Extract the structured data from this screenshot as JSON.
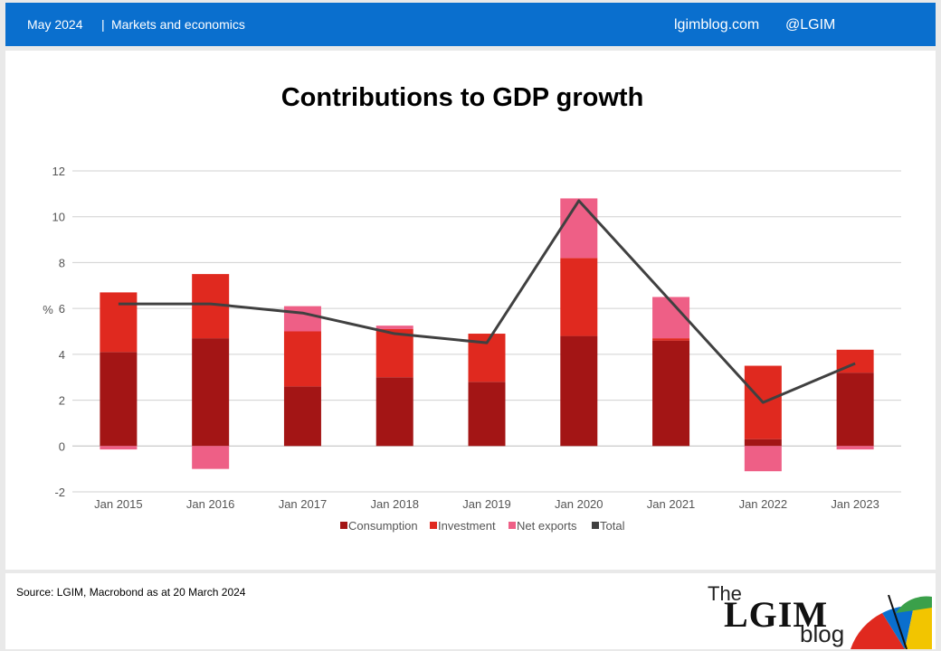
{
  "header": {
    "date": "May 2024",
    "separator": "|",
    "section": "Markets and economics",
    "site": "lgimblog.com",
    "handle": "@LGIM"
  },
  "footer": {
    "source": "Source: LGIM, Macrobond as at 20 March 2024",
    "brand_the": "The",
    "brand_name": "LGIM",
    "brand_blog": "blog"
  },
  "chart_data": {
    "type": "bar",
    "title": "Contributions to GDP growth",
    "ylabel": "%",
    "xlabel": "",
    "ylim": [
      -2,
      12
    ],
    "yticks": [
      -2,
      0,
      2,
      4,
      6,
      8,
      10,
      12
    ],
    "grid": true,
    "legend_position": "bottom",
    "stacked": true,
    "categories": [
      "Jan 2015",
      "Jan 2016",
      "Jan 2017",
      "Jan 2018",
      "Jan 2019",
      "Jan 2020",
      "Jan 2021",
      "Jan 2022",
      "Jan 2023"
    ],
    "series": [
      {
        "name": "Consumption",
        "type": "bar",
        "color": "#a31515",
        "values": [
          4.1,
          4.7,
          2.6,
          3.0,
          2.8,
          4.8,
          4.6,
          0.3,
          3.2
        ]
      },
      {
        "name": "Investment",
        "type": "bar",
        "color": "#e0291f",
        "values": [
          2.6,
          2.8,
          2.4,
          2.1,
          2.1,
          3.4,
          0.1,
          3.2,
          1.0
        ]
      },
      {
        "name": "Net exports",
        "type": "bar",
        "color": "#ee5f86",
        "values": [
          -0.15,
          -1.0,
          1.1,
          0.15,
          0.0,
          2.6,
          1.8,
          -1.1,
          -0.15
        ]
      },
      {
        "name": "Total",
        "type": "line",
        "color": "#404040",
        "values": [
          6.2,
          6.2,
          5.8,
          4.9,
          4.5,
          10.7,
          6.3,
          1.9,
          3.6
        ]
      }
    ]
  }
}
